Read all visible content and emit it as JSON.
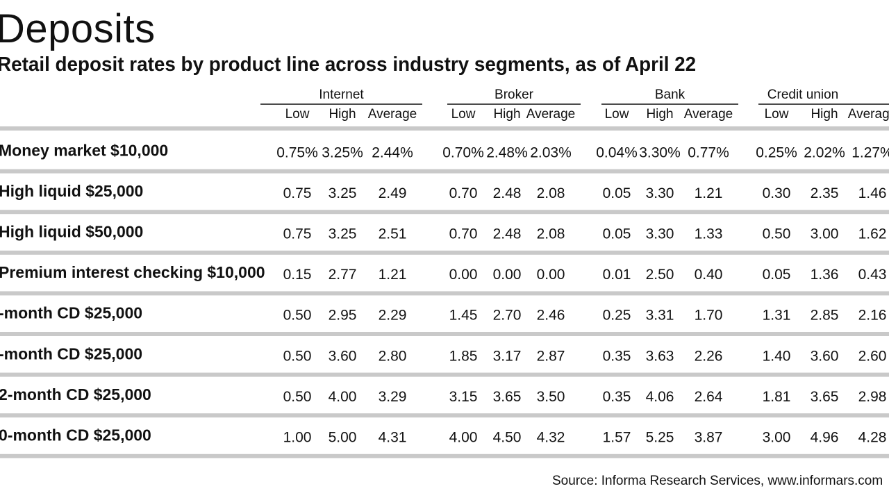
{
  "chart_data": {
    "type": "table",
    "title": "Deposits",
    "subtitle": "Retail deposit rates by product line across industry segments, as of April 22",
    "segments": [
      "Internet",
      "Broker",
      "Bank",
      "Credit union"
    ],
    "subcolumns": [
      "Low",
      "High",
      "Average"
    ],
    "rows": [
      {
        "label": "Money market $10,000",
        "values": [
          "0.75%",
          "3.25%",
          "2.44%",
          "0.70%",
          "2.48%",
          "2.03%",
          "0.04%",
          "3.30%",
          "0.77%",
          "0.25%",
          "2.02%",
          "1.27%"
        ]
      },
      {
        "label": "High liquid $25,000",
        "values": [
          "0.75",
          "3.25",
          "2.49",
          "0.70",
          "2.48",
          "2.08",
          "0.05",
          "3.30",
          "1.21",
          "0.30",
          "2.35",
          "1.46"
        ]
      },
      {
        "label": "High liquid $50,000",
        "values": [
          "0.75",
          "3.25",
          "2.51",
          "0.70",
          "2.48",
          "2.08",
          "0.05",
          "3.30",
          "1.33",
          "0.50",
          "3.00",
          "1.62"
        ]
      },
      {
        "label": "Premium interest checking $10,000",
        "values": [
          "0.15",
          "2.77",
          "1.21",
          "0.00",
          "0.00",
          "0.00",
          "0.01",
          "2.50",
          "0.40",
          "0.05",
          "1.36",
          "0.43"
        ]
      },
      {
        "label": "-month CD $25,000",
        "values": [
          "0.50",
          "2.95",
          "2.29",
          "1.45",
          "2.70",
          "2.46",
          "0.25",
          "3.31",
          "1.70",
          "1.31",
          "2.85",
          "2.16"
        ]
      },
      {
        "label": "-month CD $25,000",
        "values": [
          "0.50",
          "3.60",
          "2.80",
          "1.85",
          "3.17",
          "2.87",
          "0.35",
          "3.63",
          "2.26",
          "1.40",
          "3.60",
          "2.60"
        ]
      },
      {
        "label": "2-month CD $25,000",
        "values": [
          "0.50",
          "4.00",
          "3.29",
          "3.15",
          "3.65",
          "3.50",
          "0.35",
          "4.06",
          "2.64",
          "1.81",
          "3.65",
          "2.98"
        ]
      },
      {
        "label": "0-month CD $25,000",
        "values": [
          "1.00",
          "5.00",
          "4.31",
          "4.00",
          "4.50",
          "4.32",
          "1.57",
          "5.25",
          "3.87",
          "3.00",
          "4.96",
          "4.28"
        ]
      }
    ],
    "source": "Source: Informa Research Services, www.informars.com"
  },
  "colors": {
    "rule": "#c9c9c9",
    "text": "#111111",
    "background": "#ffffff"
  }
}
